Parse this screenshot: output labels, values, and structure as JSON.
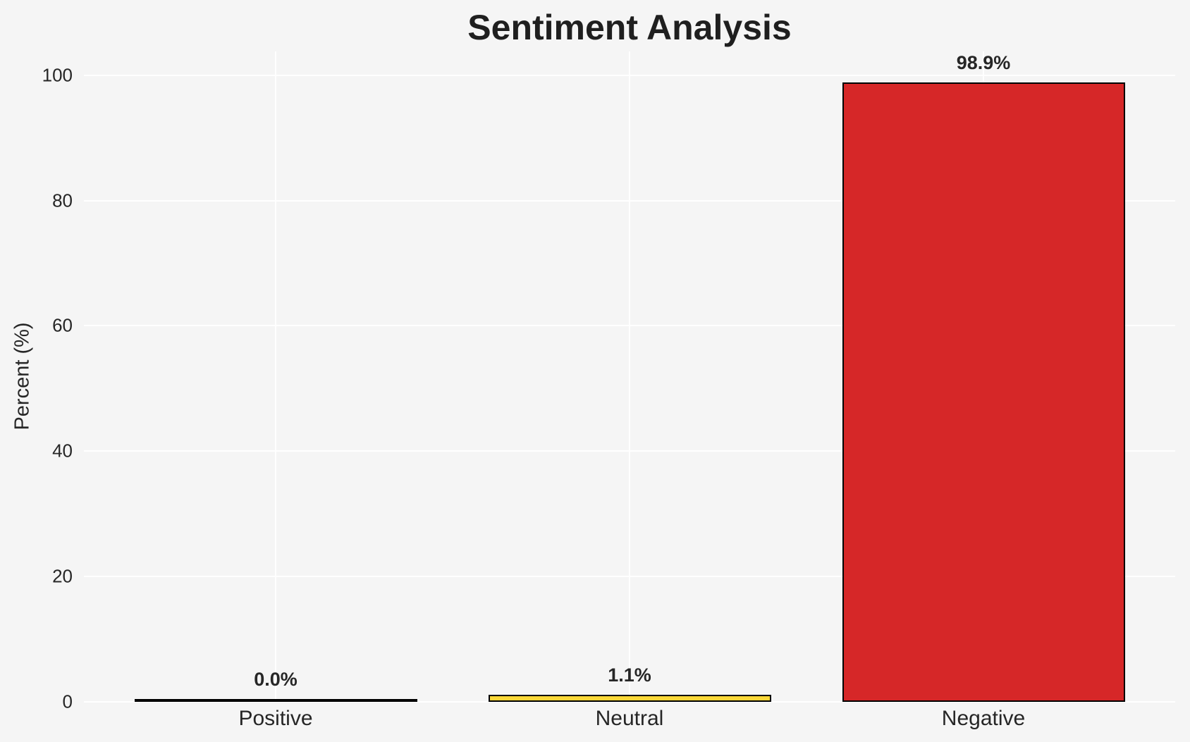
{
  "chart_data": {
    "type": "bar",
    "title": "Sentiment Analysis",
    "xlabel": "",
    "ylabel": "Percent (%)",
    "categories": [
      "Positive",
      "Neutral",
      "Negative"
    ],
    "values": [
      0.0,
      1.1,
      98.9
    ],
    "value_labels": [
      "0.0%",
      "1.1%",
      "98.9%"
    ],
    "yticks": [
      0,
      20,
      40,
      60,
      80,
      100
    ],
    "ylim": [
      0,
      103.8
    ],
    "bar_fill_colors": [
      "#000000",
      "#FBD737",
      "#D62728"
    ],
    "bar_edge_color": "#000000",
    "grid": true,
    "gridline_color": "#ffffff",
    "background_color": "#f5f5f5",
    "text_color": "#262626",
    "legend_position": "none"
  }
}
